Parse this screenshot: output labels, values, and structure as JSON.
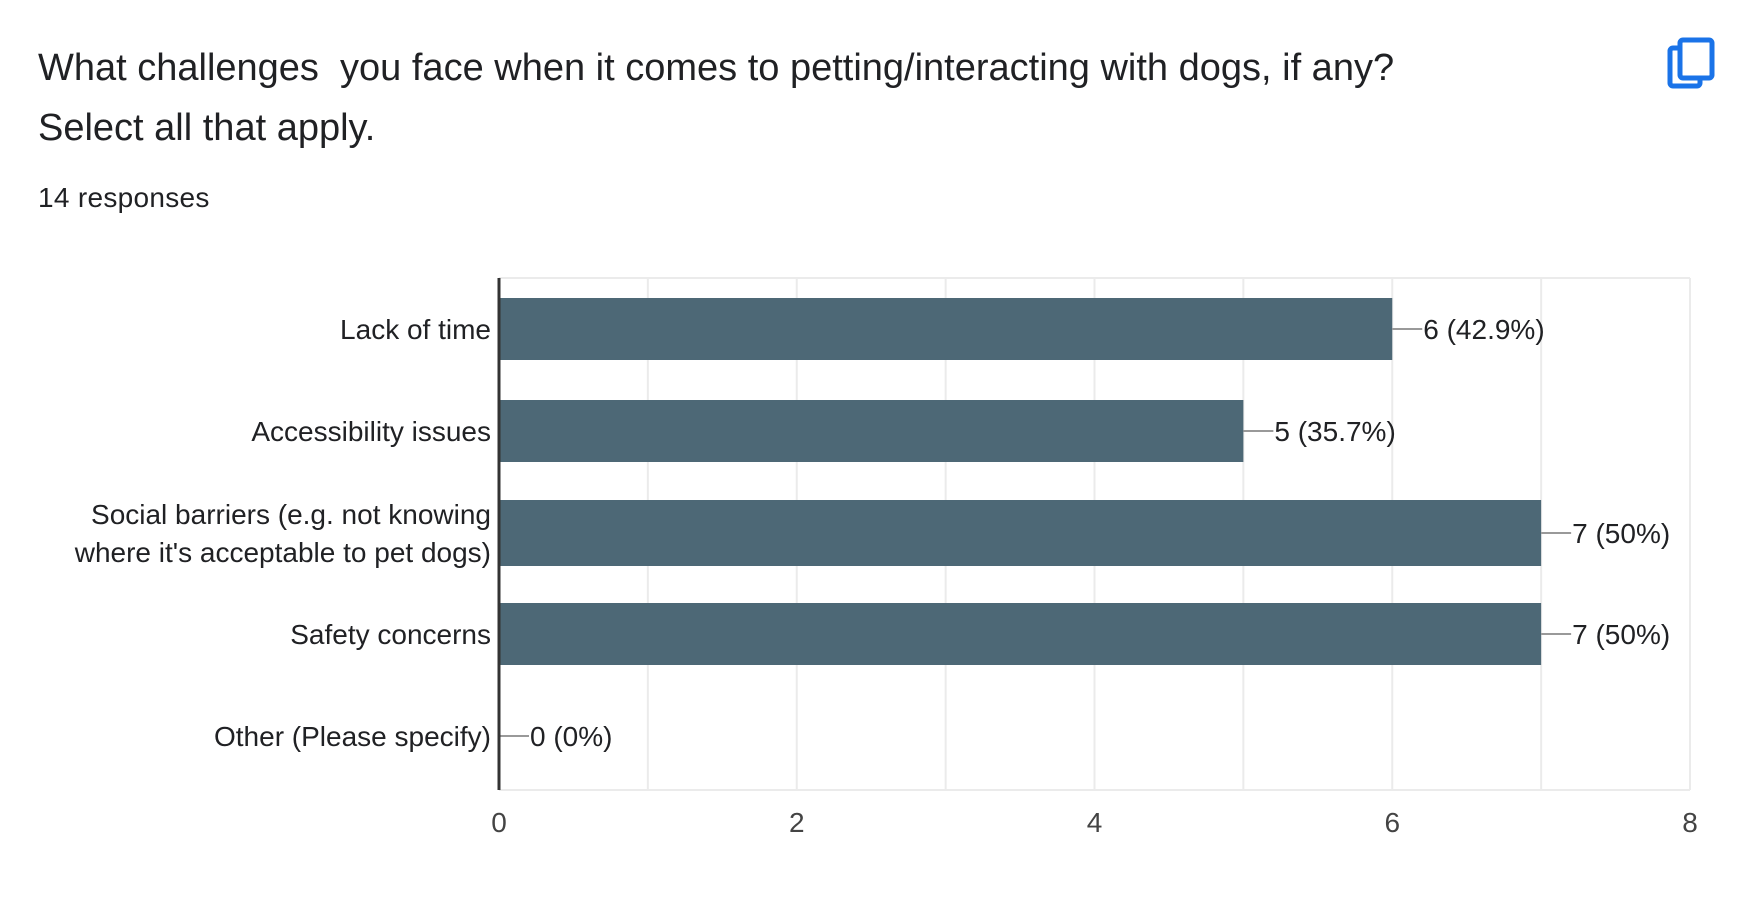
{
  "question": {
    "title": "What challenges  you face when it comes to petting/interacting with dogs, if any?\nSelect all that apply.",
    "responses": "14 responses"
  },
  "copy_button": {
    "icon": "copy-icon"
  },
  "colors": {
    "bar": "#4d6876",
    "grid": "#ebebeb",
    "axis": "#333333",
    "connector": "#999999",
    "copy_icon": "#1a73e8"
  },
  "chart_data": {
    "type": "bar",
    "orientation": "horizontal",
    "categories": [
      [
        "Lack of time"
      ],
      [
        "Accessibility issues"
      ],
      [
        "Social barriers (e.g. not knowing",
        "where it's acceptable to pet dogs)"
      ],
      [
        "Safety concerns"
      ],
      [
        "Other (Please specify)"
      ]
    ],
    "values": [
      6,
      5,
      7,
      7,
      0
    ],
    "value_labels": [
      "6 (42.9%)",
      "5 (35.7%)",
      "7 (50%)",
      "7 (50%)",
      "0 (0%)"
    ],
    "xlim": [
      0,
      8
    ],
    "xticks": [
      "0",
      "2",
      "4",
      "6",
      "8"
    ],
    "grid": true,
    "legend": "none"
  }
}
